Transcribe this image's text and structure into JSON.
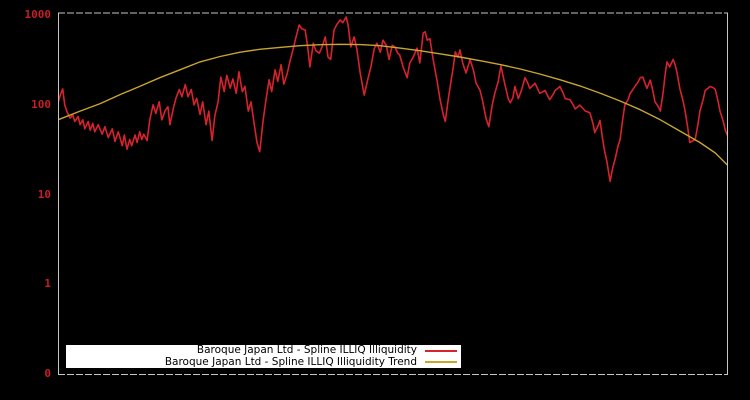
{
  "chart_data": {
    "type": "line",
    "title": "",
    "x_axis": {
      "labels": [],
      "note": "no tick labels shown; x expressed as percent of full period"
    },
    "y_axis": {
      "scale": "log",
      "ylim": [
        0.1,
        1000
      ],
      "label_color": "#c51f28",
      "ticks": [
        {
          "label": "1000",
          "value": 1000
        },
        {
          "label": "100",
          "value": 100
        },
        {
          "label": "10",
          "value": 10
        },
        {
          "label": "1",
          "value": 1
        },
        {
          "label": "0",
          "value": 0.1
        }
      ]
    },
    "grid": "off",
    "legend_position": "bottom-left-inside",
    "series": [
      {
        "name": "Baroque Japan Ltd - Spline ILLIQ Illiquidity",
        "color": "#d8222e",
        "width": 1.6,
        "points": [
          [
            0,
            105
          ],
          [
            0.4,
            132
          ],
          [
            0.7,
            150
          ],
          [
            1,
            100
          ],
          [
            1.3,
            85
          ],
          [
            1.8,
            71
          ],
          [
            2.2,
            77
          ],
          [
            2.5,
            65
          ],
          [
            3,
            74
          ],
          [
            3.3,
            60
          ],
          [
            3.7,
            68
          ],
          [
            4,
            54
          ],
          [
            4.5,
            65
          ],
          [
            4.8,
            52
          ],
          [
            5.2,
            62
          ],
          [
            5.5,
            50
          ],
          [
            6,
            60
          ],
          [
            6.6,
            47
          ],
          [
            7,
            57
          ],
          [
            7.5,
            43
          ],
          [
            8.1,
            54
          ],
          [
            8.5,
            39
          ],
          [
            9,
            50
          ],
          [
            9.6,
            35
          ],
          [
            9.9,
            46
          ],
          [
            10.3,
            32
          ],
          [
            10.7,
            41
          ],
          [
            11,
            35
          ],
          [
            11.5,
            46
          ],
          [
            11.8,
            38
          ],
          [
            12.2,
            50
          ],
          [
            12.5,
            41
          ],
          [
            12.8,
            47
          ],
          [
            13.3,
            40
          ],
          [
            13.7,
            68
          ],
          [
            14.2,
            100
          ],
          [
            14.6,
            80
          ],
          [
            15.1,
            108
          ],
          [
            15.5,
            68
          ],
          [
            16,
            86
          ],
          [
            16.4,
            95
          ],
          [
            16.7,
            60
          ],
          [
            17.2,
            90
          ],
          [
            17.6,
            118
          ],
          [
            18.1,
            148
          ],
          [
            18.5,
            123
          ],
          [
            19,
            168
          ],
          [
            19.4,
            123
          ],
          [
            19.9,
            148
          ],
          [
            20.3,
            100
          ],
          [
            20.7,
            118
          ],
          [
            21.2,
            78
          ],
          [
            21.6,
            108
          ],
          [
            22.1,
            60
          ],
          [
            22.5,
            85
          ],
          [
            23,
            40
          ],
          [
            23.4,
            75
          ],
          [
            23.9,
            108
          ],
          [
            24.3,
            203
          ],
          [
            24.8,
            140
          ],
          [
            25.2,
            213
          ],
          [
            25.7,
            153
          ],
          [
            26.1,
            194
          ],
          [
            26.6,
            134
          ],
          [
            27,
            233
          ],
          [
            27.5,
            140
          ],
          [
            27.9,
            160
          ],
          [
            28.4,
            85
          ],
          [
            28.8,
            108
          ],
          [
            29.3,
            60
          ],
          [
            29.7,
            38
          ],
          [
            30.1,
            30
          ],
          [
            30.6,
            65
          ],
          [
            31,
            108
          ],
          [
            31.5,
            190
          ],
          [
            31.9,
            140
          ],
          [
            32.4,
            245
          ],
          [
            32.8,
            182
          ],
          [
            33.3,
            280
          ],
          [
            33.7,
            170
          ],
          [
            34.2,
            220
          ],
          [
            34.6,
            300
          ],
          [
            35.1,
            420
          ],
          [
            35.5,
            560
          ],
          [
            36,
            773
          ],
          [
            36.4,
            700
          ],
          [
            36.9,
            680
          ],
          [
            37.3,
            420
          ],
          [
            37.6,
            264
          ],
          [
            38.1,
            485
          ],
          [
            38.5,
            400
          ],
          [
            39,
            375
          ],
          [
            39.4,
            440
          ],
          [
            39.9,
            570
          ],
          [
            40.3,
            340
          ],
          [
            40.7,
            320
          ],
          [
            41.2,
            680
          ],
          [
            41.6,
            780
          ],
          [
            42.1,
            880
          ],
          [
            42.5,
            820
          ],
          [
            43,
            950
          ],
          [
            43.3,
            773
          ],
          [
            43.7,
            440
          ],
          [
            44.2,
            570
          ],
          [
            44.6,
            420
          ],
          [
            45.1,
            226
          ],
          [
            45.7,
            128
          ],
          [
            46.3,
            200
          ],
          [
            46.7,
            264
          ],
          [
            47.2,
            420
          ],
          [
            47.6,
            485
          ],
          [
            48.1,
            385
          ],
          [
            48.5,
            525
          ],
          [
            49,
            460
          ],
          [
            49.4,
            320
          ],
          [
            49.9,
            460
          ],
          [
            50.3,
            440
          ],
          [
            50.7,
            375
          ],
          [
            51,
            358
          ],
          [
            51.5,
            264
          ],
          [
            52.1,
            200
          ],
          [
            52.5,
            292
          ],
          [
            53,
            338
          ],
          [
            53.6,
            428
          ],
          [
            54,
            292
          ],
          [
            54.5,
            630
          ],
          [
            54.8,
            650
          ],
          [
            55.1,
            524
          ],
          [
            55.5,
            545
          ],
          [
            56,
            318
          ],
          [
            56.6,
            181
          ],
          [
            57,
            117
          ],
          [
            57.5,
            78
          ],
          [
            57.8,
            65
          ],
          [
            58.2,
            108
          ],
          [
            58.5,
            152
          ],
          [
            59,
            264
          ],
          [
            59.3,
            388
          ],
          [
            59.7,
            338
          ],
          [
            60,
            408
          ],
          [
            60.4,
            292
          ],
          [
            60.9,
            226
          ],
          [
            61.5,
            318
          ],
          [
            62,
            243
          ],
          [
            62.4,
            174
          ],
          [
            63,
            144
          ],
          [
            63.4,
            108
          ],
          [
            63.9,
            70
          ],
          [
            64.3,
            57
          ],
          [
            64.8,
            99
          ],
          [
            65.2,
            134
          ],
          [
            65.7,
            181
          ],
          [
            66.1,
            270
          ],
          [
            66.7,
            168
          ],
          [
            67.2,
            117
          ],
          [
            67.5,
            105
          ],
          [
            67.9,
            120
          ],
          [
            68.2,
            160
          ],
          [
            68.7,
            117
          ],
          [
            69.1,
            140
          ],
          [
            69.7,
            200
          ],
          [
            70.1,
            175
          ],
          [
            70.4,
            152
          ],
          [
            70.9,
            165
          ],
          [
            71.2,
            174
          ],
          [
            71.6,
            150
          ],
          [
            71.9,
            134
          ],
          [
            72.4,
            140
          ],
          [
            72.7,
            144
          ],
          [
            73.1,
            125
          ],
          [
            73.4,
            114
          ],
          [
            73.9,
            130
          ],
          [
            74.2,
            144
          ],
          [
            74.6,
            152
          ],
          [
            74.9,
            160
          ],
          [
            75.4,
            135
          ],
          [
            75.7,
            117
          ],
          [
            76.1,
            115
          ],
          [
            76.4,
            114
          ],
          [
            76.9,
            100
          ],
          [
            77.2,
            90
          ],
          [
            77.6,
            95
          ],
          [
            77.9,
            99
          ],
          [
            78.4,
            90
          ],
          [
            78.7,
            85
          ],
          [
            79.1,
            83
          ],
          [
            79.4,
            81
          ],
          [
            79.9,
            60
          ],
          [
            80.1,
            49
          ],
          [
            80.6,
            58
          ],
          [
            80.9,
            67
          ],
          [
            81.3,
            41
          ],
          [
            81.6,
            30
          ],
          [
            81.9,
            24
          ],
          [
            82.4,
            14
          ],
          [
            82.8,
            20
          ],
          [
            83.1,
            24
          ],
          [
            83.6,
            35
          ],
          [
            83.9,
            41
          ],
          [
            84.3,
            70
          ],
          [
            84.6,
            99
          ],
          [
            85.1,
            115
          ],
          [
            85.4,
            134
          ],
          [
            85.8,
            148
          ],
          [
            86.1,
            160
          ],
          [
            86.6,
            180
          ],
          [
            86.9,
            200
          ],
          [
            87.3,
            203
          ],
          [
            87.6,
            175
          ],
          [
            87.9,
            152
          ],
          [
            88.4,
            188
          ],
          [
            88.8,
            140
          ],
          [
            89.1,
            108
          ],
          [
            89.6,
            95
          ],
          [
            89.9,
            85
          ],
          [
            90.3,
            134
          ],
          [
            90.6,
            210
          ],
          [
            90.9,
            300
          ],
          [
            91.3,
            264
          ],
          [
            91.8,
            320
          ],
          [
            92.1,
            280
          ],
          [
            92.4,
            226
          ],
          [
            92.8,
            152
          ],
          [
            93.3,
            110
          ],
          [
            93.6,
            85
          ],
          [
            94,
            55
          ],
          [
            94.3,
            38
          ],
          [
            94.8,
            40
          ],
          [
            95.1,
            41
          ],
          [
            95.5,
            60
          ],
          [
            95.8,
            85
          ],
          [
            96.3,
            115
          ],
          [
            96.6,
            144
          ],
          [
            97,
            152
          ],
          [
            97.3,
            160
          ],
          [
            97.8,
            155
          ],
          [
            98.1,
            148
          ],
          [
            98.5,
            110
          ],
          [
            98.8,
            85
          ],
          [
            99.3,
            65
          ],
          [
            99.6,
            52
          ],
          [
            100,
            44
          ]
        ]
      },
      {
        "name": "Baroque Japan Ltd - Spline ILLIQ Illiquidity Trend",
        "color": "#c9a42f",
        "width": 1.4,
        "points": [
          [
            0,
            68
          ],
          [
            3.3,
            85
          ],
          [
            6.3,
            103
          ],
          [
            9.3,
            130
          ],
          [
            12.2,
            160
          ],
          [
            15.2,
            200
          ],
          [
            18.2,
            245
          ],
          [
            21.2,
            300
          ],
          [
            24.2,
            345
          ],
          [
            27.2,
            385
          ],
          [
            30.1,
            415
          ],
          [
            33.1,
            435
          ],
          [
            36.1,
            455
          ],
          [
            39.1,
            467
          ],
          [
            42.1,
            471
          ],
          [
            45.1,
            468
          ],
          [
            48.1,
            455
          ],
          [
            51,
            428
          ],
          [
            54,
            400
          ],
          [
            57,
            370
          ],
          [
            60,
            340
          ],
          [
            63,
            310
          ],
          [
            66,
            280
          ],
          [
            69,
            250
          ],
          [
            71.9,
            220
          ],
          [
            74.9,
            190
          ],
          [
            77.9,
            162
          ],
          [
            80.9,
            135
          ],
          [
            83.9,
            110
          ],
          [
            86.9,
            88
          ],
          [
            89.9,
            68
          ],
          [
            92.8,
            51
          ],
          [
            95.8,
            38
          ],
          [
            98.1,
            29
          ],
          [
            100,
            21
          ]
        ]
      }
    ]
  },
  "legend": {
    "background": "#ffffff"
  },
  "colors": {
    "background": "#000000",
    "plot_border": "#c6c6c6"
  }
}
